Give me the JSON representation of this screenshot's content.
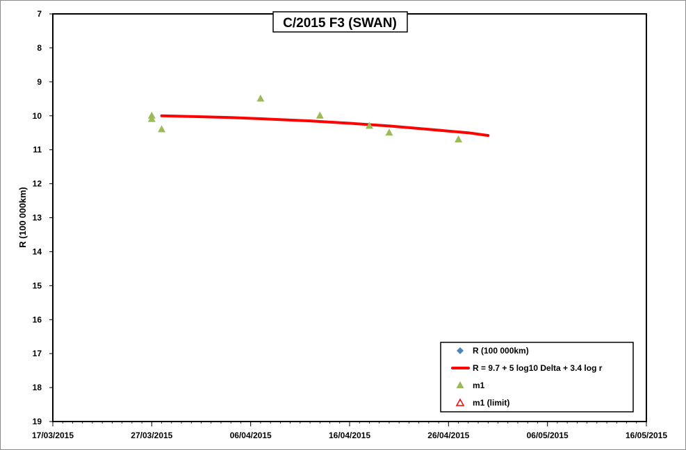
{
  "chart_data": {
    "type": "scatter",
    "title": "C/2015 F3 (SWAN)",
    "xlabel": "",
    "ylabel": "R (100 000km)",
    "x_type": "date",
    "xlim": [
      "2015-03-17",
      "2015-05-16"
    ],
    "ylim": [
      19,
      7
    ],
    "y_inverted": true,
    "x_ticks": [
      "17/03/2015",
      "27/03/2015",
      "06/04/2015",
      "16/04/2015",
      "26/04/2015",
      "06/05/2015",
      "16/05/2015"
    ],
    "y_ticks": [
      "7",
      "8",
      "9",
      "10",
      "11",
      "12",
      "13",
      "14",
      "15",
      "16",
      "17",
      "18",
      "19"
    ],
    "grid": false,
    "legend_position": "bottom-right",
    "legend": [
      {
        "label": "R (100 000km)",
        "marker": "diamond",
        "color": "#4f81bd"
      },
      {
        "label": "R = 9.7 + 5 log10 Delta + 3.4 log r",
        "marker": "line",
        "color": "#ff0000"
      },
      {
        "label": "m1",
        "marker": "triangle",
        "color": "#9bbb59"
      },
      {
        "label": "m1 (limit)",
        "marker": "open-triangle",
        "color": "#ff0000"
      }
    ],
    "series": [
      {
        "name": "R = 9.7 + 5 log10 Delta + 3.4 log r",
        "kind": "line",
        "color": "#ff0000",
        "points": [
          {
            "x": "2015-03-28",
            "y": 10.0
          },
          {
            "x": "2015-03-31",
            "y": 10.02
          },
          {
            "x": "2015-04-04",
            "y": 10.05
          },
          {
            "x": "2015-04-08",
            "y": 10.1
          },
          {
            "x": "2015-04-12",
            "y": 10.15
          },
          {
            "x": "2015-04-16",
            "y": 10.22
          },
          {
            "x": "2015-04-20",
            "y": 10.3
          },
          {
            "x": "2015-04-24",
            "y": 10.4
          },
          {
            "x": "2015-04-28",
            "y": 10.5
          },
          {
            "x": "2015-04-30",
            "y": 10.58
          }
        ]
      },
      {
        "name": "m1",
        "kind": "marker",
        "marker": "triangle",
        "color": "#9bbb59",
        "points": [
          {
            "x": "2015-03-27",
            "y": 10.0
          },
          {
            "x": "2015-03-27",
            "y": 10.1
          },
          {
            "x": "2015-03-28",
            "y": 10.4
          },
          {
            "x": "2015-04-07",
            "y": 9.5
          },
          {
            "x": "2015-04-13",
            "y": 10.0
          },
          {
            "x": "2015-04-18",
            "y": 10.3
          },
          {
            "x": "2015-04-20",
            "y": 10.5
          },
          {
            "x": "2015-04-27",
            "y": 10.7
          }
        ]
      }
    ]
  }
}
